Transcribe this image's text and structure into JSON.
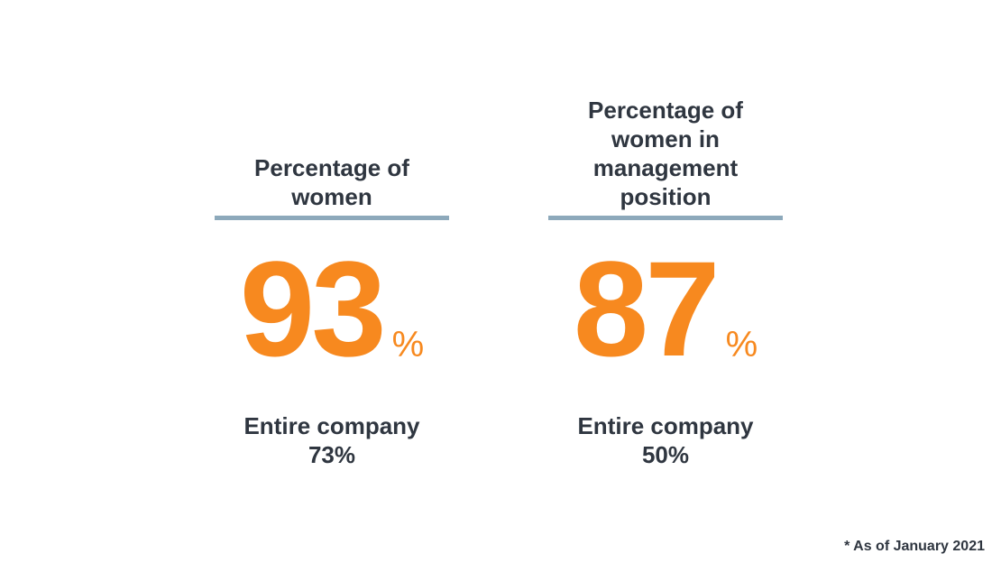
{
  "theme": {
    "accent_color": "#f7891f",
    "divider_color": "#8da9bb",
    "text_color": "#2f3640"
  },
  "stats": [
    {
      "title": "Percentage of women",
      "value": "93",
      "unit": "%",
      "sub_label": "Entire company",
      "sub_value": "73%"
    },
    {
      "title": "Percentage of women in management position",
      "value": "87",
      "unit": "%",
      "sub_label": "Entire company",
      "sub_value": "50%"
    }
  ],
  "footnote": "* As of January 2021"
}
